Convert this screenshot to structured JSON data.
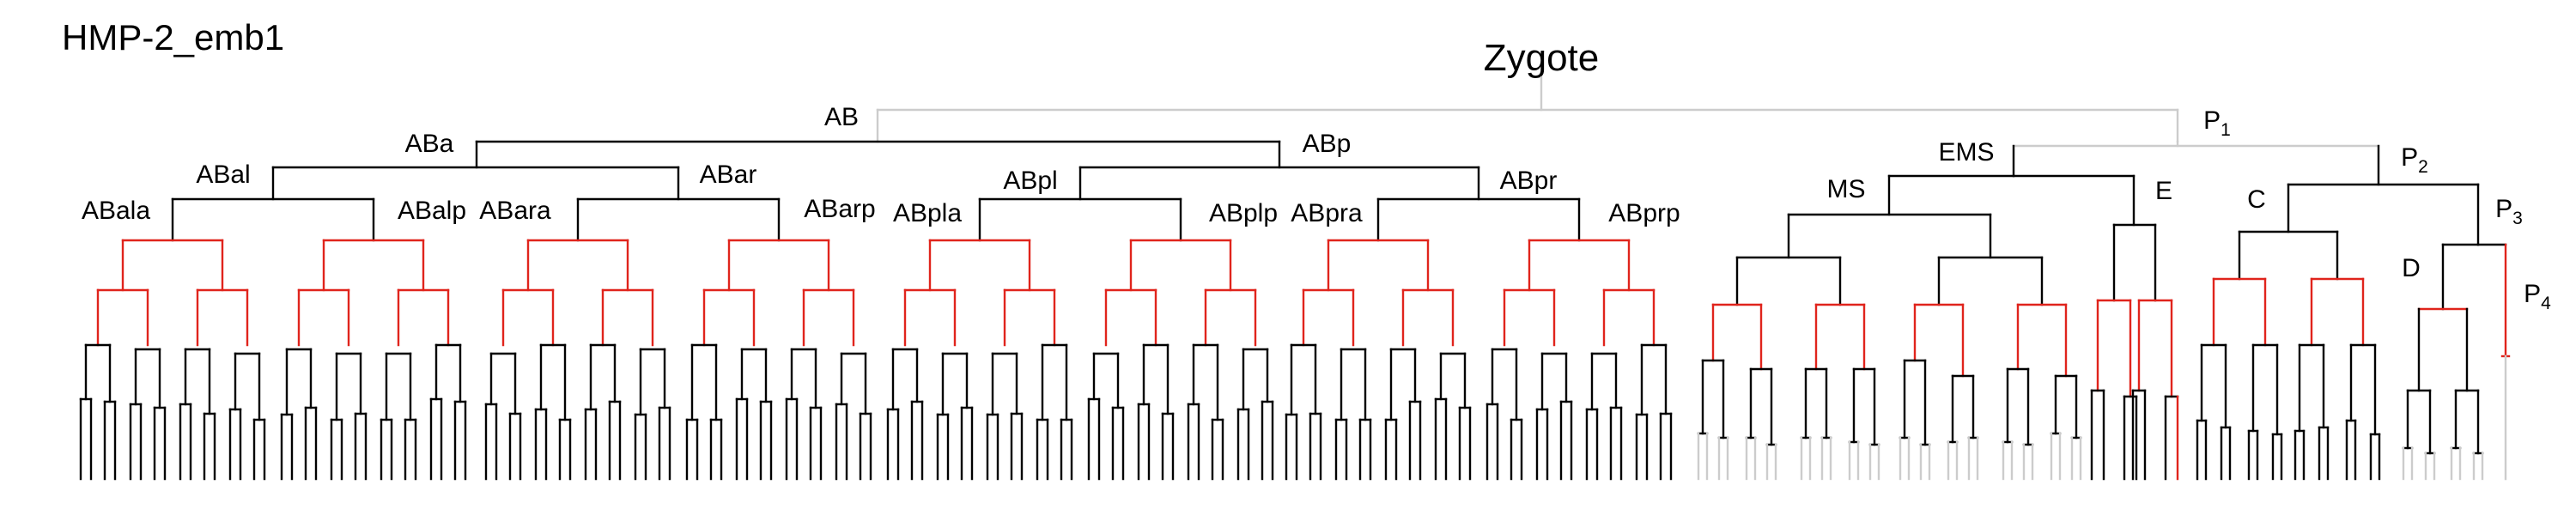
{
  "page": {
    "title": "HMP-2_emb1"
  },
  "tree": {
    "root": "Zygote",
    "colors": {
      "standard": "#000000",
      "highlight": "#e0241c",
      "faded": "#cccccc"
    },
    "labels": [
      {
        "id": "AB",
        "text": "AB"
      },
      {
        "id": "P1",
        "text": "P",
        "sub": "1"
      },
      {
        "id": "ABa",
        "text": "ABa"
      },
      {
        "id": "ABp",
        "text": "ABp"
      },
      {
        "id": "EMS",
        "text": "EMS"
      },
      {
        "id": "P2",
        "text": "P",
        "sub": "2"
      },
      {
        "id": "ABal",
        "text": "ABal"
      },
      {
        "id": "ABar",
        "text": "ABar"
      },
      {
        "id": "ABpl",
        "text": "ABpl"
      },
      {
        "id": "ABpr",
        "text": "ABpr"
      },
      {
        "id": "MS",
        "text": "MS"
      },
      {
        "id": "E",
        "text": "E"
      },
      {
        "id": "C",
        "text": "C"
      },
      {
        "id": "P3",
        "text": "P",
        "sub": "3"
      },
      {
        "id": "ABala",
        "text": "ABala"
      },
      {
        "id": "ABalp",
        "text": "ABalp"
      },
      {
        "id": "ABara",
        "text": "ABara"
      },
      {
        "id": "ABarp",
        "text": "ABarp"
      },
      {
        "id": "ABpla",
        "text": "ABpla"
      },
      {
        "id": "ABplp",
        "text": "ABplp"
      },
      {
        "id": "ABpra",
        "text": "ABpra"
      },
      {
        "id": "ABprp",
        "text": "ABprp"
      },
      {
        "id": "D",
        "text": "D"
      },
      {
        "id": "P4",
        "text": "P",
        "sub": "4"
      }
    ]
  }
}
